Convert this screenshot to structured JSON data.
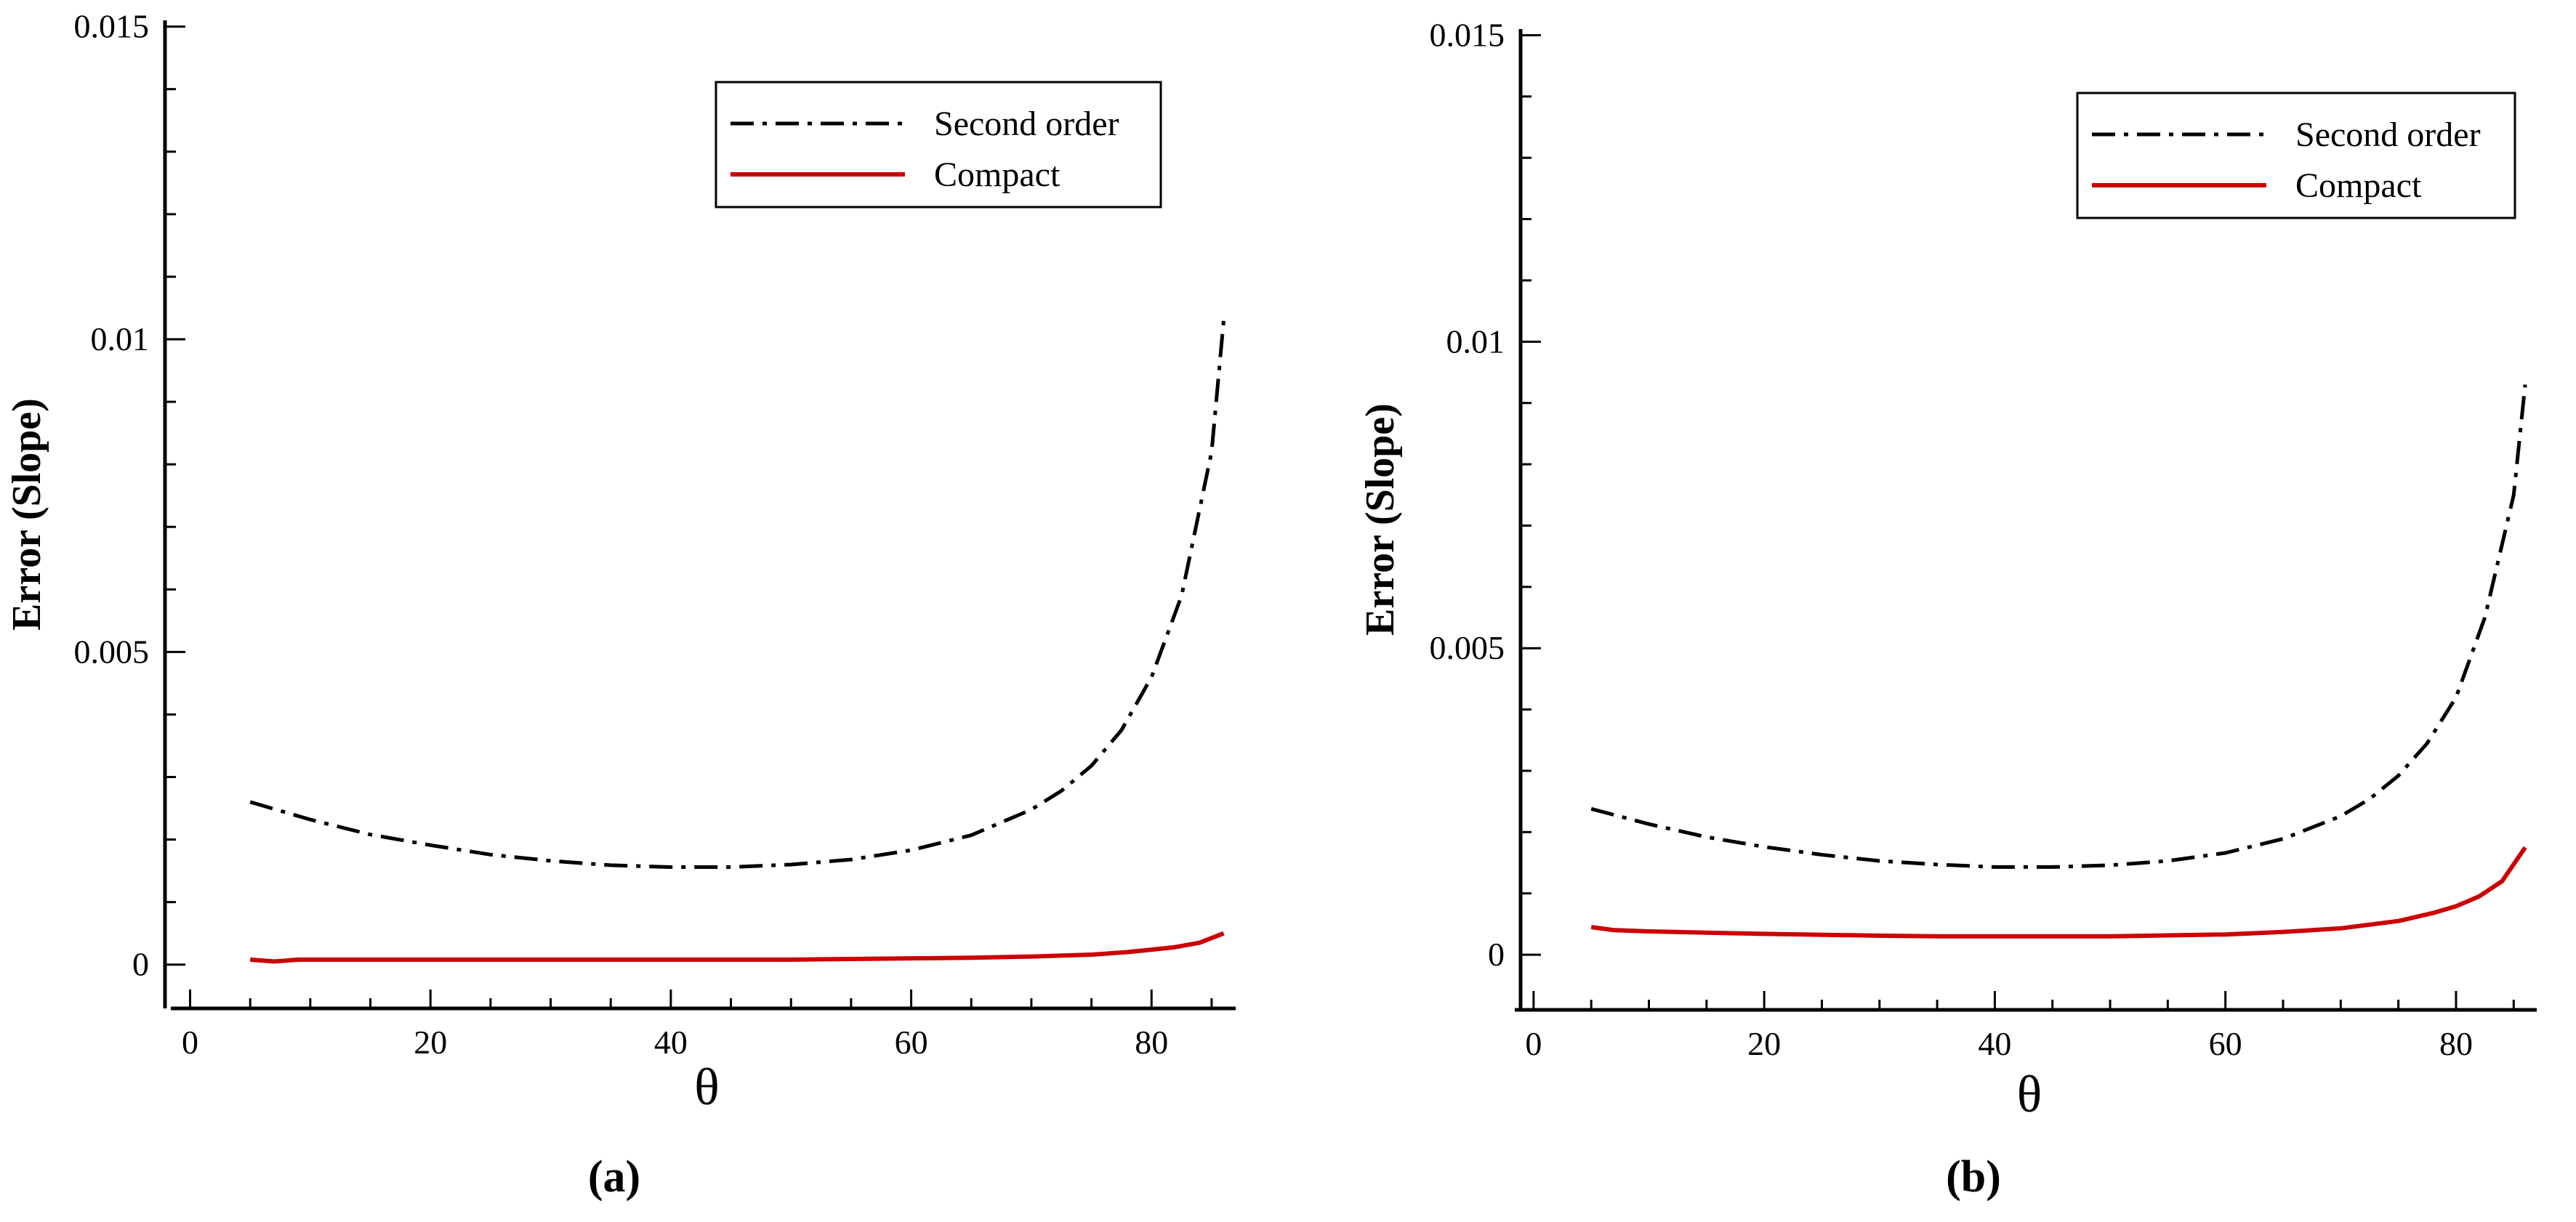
{
  "colors": {
    "second_order": "#000000",
    "compact": "#cc0000",
    "axis": "#000000",
    "background": "#ffffff"
  },
  "chart_data": [
    {
      "type": "line",
      "panel_label": "(a)",
      "xlabel": "θ",
      "ylabel": "Error (Slope)",
      "xlim": [
        -1,
        87
      ],
      "ylim": [
        -0.0007,
        0.0151
      ],
      "x_ticks": [
        0,
        20,
        40,
        60,
        80
      ],
      "x_tick_labels": [
        "0",
        "20",
        "40",
        "60",
        "80"
      ],
      "y_ticks": [
        0,
        0.005,
        0.01,
        0.015
      ],
      "y_tick_labels": [
        "0",
        "0.005",
        "0.01",
        "0.015"
      ],
      "grid": false,
      "legend_position": "top-right",
      "series": [
        {
          "name": "Second order",
          "style": "dash-dot",
          "x": [
            5,
            10,
            15,
            20,
            25,
            30,
            35,
            40,
            45,
            50,
            55,
            60,
            65,
            70,
            72.5,
            75,
            77.5,
            80,
            82.5,
            85,
            86
          ],
          "y": [
            0.0026,
            0.00232,
            0.00208,
            0.00191,
            0.00176,
            0.00166,
            0.00159,
            0.00156,
            0.00156,
            0.0016,
            0.00168,
            0.00183,
            0.00207,
            0.00248,
            0.00278,
            0.00318,
            0.00375,
            0.0046,
            0.0059,
            0.0082,
            0.0103
          ]
        },
        {
          "name": "Compact",
          "style": "solid",
          "x": [
            5,
            7,
            9,
            15,
            20,
            30,
            40,
            50,
            60,
            65,
            70,
            75,
            78,
            80,
            82,
            84,
            86
          ],
          "y": [
            8e-05,
            5e-05,
            8e-05,
            8e-05,
            8e-05,
            8e-05,
            8e-05,
            8e-05,
            0.0001,
            0.00011,
            0.00013,
            0.00016,
            0.0002,
            0.00024,
            0.00028,
            0.00035,
            0.0005
          ]
        }
      ]
    },
    {
      "type": "line",
      "panel_label": "(b)",
      "xlabel": "θ",
      "ylabel": "Error (Slope)",
      "xlim": [
        -1,
        87
      ],
      "ylim": [
        -0.0009,
        0.0151
      ],
      "x_ticks": [
        0,
        20,
        40,
        60,
        80
      ],
      "x_tick_labels": [
        "0",
        "20",
        "40",
        "60",
        "80"
      ],
      "y_ticks": [
        0,
        0.005,
        0.01,
        0.015
      ],
      "y_tick_labels": [
        "0",
        "0.005",
        "0.01",
        "0.015"
      ],
      "grid": false,
      "legend_position": "top-right",
      "series": [
        {
          "name": "Second order",
          "style": "dash-dot",
          "x": [
            5,
            10,
            15,
            20,
            25,
            30,
            35,
            40,
            45,
            50,
            55,
            60,
            65,
            70,
            72.5,
            75,
            77.5,
            80,
            82.5,
            85,
            86
          ],
          "y": [
            0.00238,
            0.00213,
            0.00192,
            0.00176,
            0.00163,
            0.00153,
            0.00147,
            0.00143,
            0.00143,
            0.00146,
            0.00153,
            0.00166,
            0.00189,
            0.00226,
            0.00254,
            0.00292,
            0.00345,
            0.0042,
            0.0055,
            0.0075,
            0.0093
          ]
        },
        {
          "name": "Compact",
          "style": "solid",
          "x": [
            5,
            7,
            10,
            15,
            20,
            30,
            35,
            40,
            50,
            60,
            65,
            70,
            75,
            78,
            80,
            82,
            84,
            86
          ],
          "y": [
            0.00045,
            0.0004,
            0.00038,
            0.00036,
            0.00034,
            0.00031,
            0.0003,
            0.0003,
            0.0003,
            0.00033,
            0.00037,
            0.00043,
            0.00055,
            0.00068,
            0.00079,
            0.00095,
            0.0012,
            0.00175
          ]
        }
      ]
    }
  ]
}
